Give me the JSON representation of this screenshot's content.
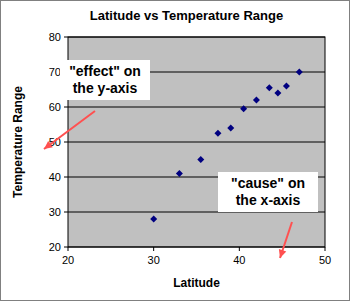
{
  "chart_data": {
    "type": "scatter",
    "title": "Latitude vs Temperature Range",
    "x_label": "Latitude",
    "y_label": "Temperature Range",
    "x": [
      30,
      33,
      35.5,
      37.5,
      39,
      40.5,
      42,
      43.5,
      44.5,
      45.5,
      47
    ],
    "values": [
      28,
      41,
      45,
      52.5,
      54,
      59.5,
      62,
      65.5,
      64,
      66,
      70
    ],
    "color": "#000080",
    "marker": "diamond",
    "xlim": [
      20,
      50
    ],
    "xticks": [
      20,
      30,
      40,
      50
    ],
    "ylim": [
      20,
      80
    ],
    "yticks": [
      20,
      30,
      40,
      50,
      60,
      70,
      80
    ],
    "grid": true,
    "annotations": [
      [
        "\"effect\" on",
        "the y-axis"
      ],
      [
        "\"cause\" on",
        "the x-axis"
      ]
    ]
  }
}
